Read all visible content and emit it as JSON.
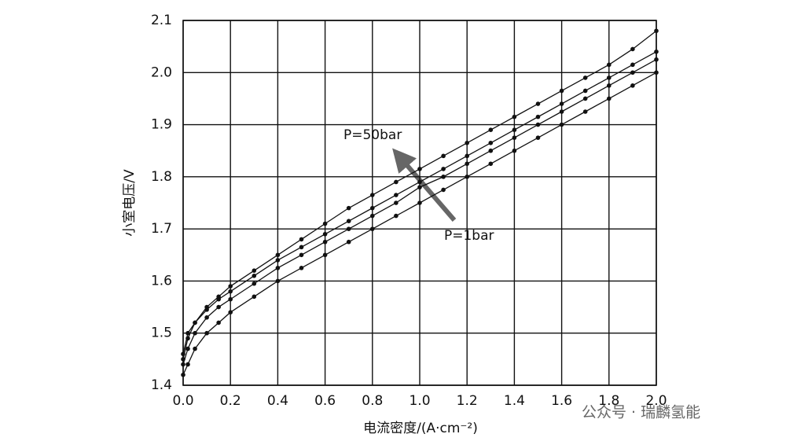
{
  "chart_data": {
    "type": "line",
    "xlabel": "电流密度/(A·cm⁻²)",
    "ylabel": "小室电压/V",
    "x": [
      0,
      0.02,
      0.05,
      0.1,
      0.15,
      0.2,
      0.3,
      0.4,
      0.5,
      0.6,
      0.7,
      0.8,
      0.9,
      1.0,
      1.1,
      1.2,
      1.3,
      1.4,
      1.5,
      1.6,
      1.7,
      1.8,
      1.9,
      2.0
    ],
    "series": [
      {
        "color": "#111111",
        "values": [
          1.45,
          1.49,
          1.52,
          1.55,
          1.57,
          1.59,
          1.62,
          1.65,
          1.68,
          1.71,
          1.74,
          1.765,
          1.79,
          1.815,
          1.84,
          1.865,
          1.89,
          1.915,
          1.94,
          1.965,
          1.99,
          2.015,
          2.045,
          2.08
        ]
      },
      {
        "color": "#111111",
        "values": [
          1.46,
          1.5,
          1.52,
          1.545,
          1.565,
          1.58,
          1.61,
          1.64,
          1.665,
          1.69,
          1.715,
          1.74,
          1.765,
          1.79,
          1.815,
          1.84,
          1.865,
          1.89,
          1.915,
          1.94,
          1.965,
          1.99,
          2.015,
          2.04
        ]
      },
      {
        "color": "#111111",
        "values": [
          1.44,
          1.47,
          1.5,
          1.53,
          1.55,
          1.565,
          1.595,
          1.625,
          1.65,
          1.675,
          1.7,
          1.725,
          1.75,
          1.78,
          1.8,
          1.825,
          1.85,
          1.875,
          1.9,
          1.925,
          1.95,
          1.975,
          2.0,
          2.025
        ]
      },
      {
        "color": "#111111",
        "values": [
          1.42,
          1.44,
          1.47,
          1.5,
          1.52,
          1.54,
          1.57,
          1.6,
          1.625,
          1.65,
          1.675,
          1.7,
          1.725,
          1.75,
          1.775,
          1.8,
          1.825,
          1.85,
          1.875,
          1.9,
          1.925,
          1.95,
          1.975,
          2.0
        ]
      }
    ],
    "xlim": [
      0,
      2
    ],
    "xticks": [
      {
        "value": 0,
        "label": "0.0"
      },
      0.2,
      0.4,
      0.6,
      0.8,
      {
        "value": 1,
        "label": "1.0"
      },
      1.2,
      1.4,
      1.6,
      1.8,
      {
        "value": 2,
        "label": "2.0"
      }
    ],
    "ylim": [
      1.4,
      2.1
    ],
    "yticks": [
      1.4,
      1.5,
      1.6,
      1.7,
      1.8,
      1.9,
      {
        "value": 2,
        "label": "2.0"
      },
      2.1
    ],
    "grid": true,
    "annotations": [
      "P=50bar",
      "P=1bar"
    ],
    "watermark": "公众号 · 瑞麟氢能"
  }
}
